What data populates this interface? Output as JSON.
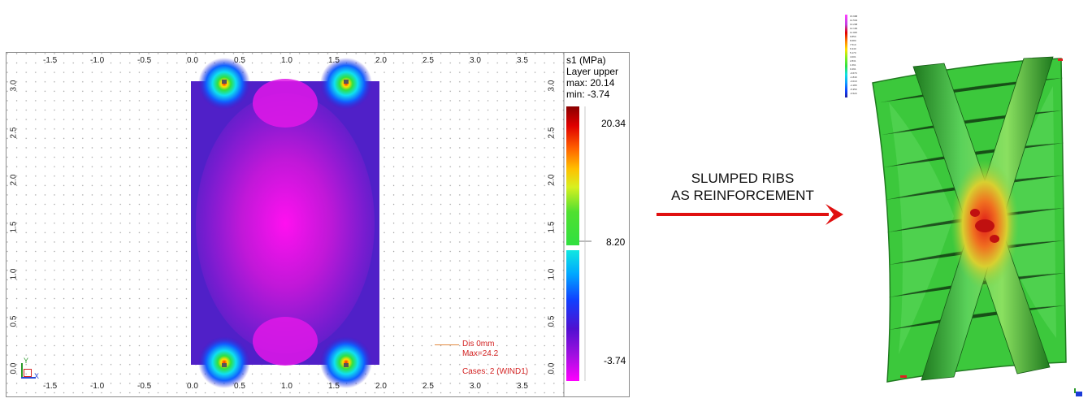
{
  "left_panel": {
    "legend": {
      "title": "s1 (MPa)",
      "layer": "Layer upper",
      "max": "max: 20.14",
      "min": "min: -3.74",
      "scale_top": "20.34",
      "scale_mid": "8.20",
      "scale_bottom": "-3.74"
    },
    "x_ticks": [
      "-1.5",
      "-1.0",
      "-0.5",
      "0.0",
      "0.5",
      "1.0",
      "1.5",
      "2.0",
      "2.5",
      "3.0",
      "3.5"
    ],
    "y_ticks": [
      "0.0",
      "0.5",
      "1.0",
      "1.5",
      "2.0",
      "2.5",
      "3.0"
    ],
    "axis_labels": {
      "x": "X",
      "y": "Y"
    },
    "displacement": {
      "line1": "Dis  0mm",
      "line2": "Max=24.2"
    },
    "cases": "Cases: 2 (WIND1)",
    "colors": {
      "stress_max": "#b40000",
      "stress_mid": "#2ee02e",
      "stress_min": "#ff00ff",
      "plate_field": "#5020c8",
      "annotation": "#d32222"
    }
  },
  "middle": {
    "caption_line1": "SLUMPED RIBS",
    "caption_line2": "AS REINFORCEMENT",
    "arrow_color": "#e01010"
  },
  "right_panel": {
    "legend_values": [
      "15.988",
      "14.504",
      "13.298",
      "12.190",
      "11.025",
      "9.850",
      "8.680",
      "7.510",
      "6.340",
      "5.170",
      "4.001",
      "2.831",
      "1.661",
      "0.491",
      "-0.679",
      "-1.849",
      "-3.019",
      "-4.189",
      "-5.359",
      "-6.529"
    ],
    "colors": {
      "surface": "#3cc83c",
      "rib": "#2a8a2a",
      "hot": "#e02020"
    }
  }
}
